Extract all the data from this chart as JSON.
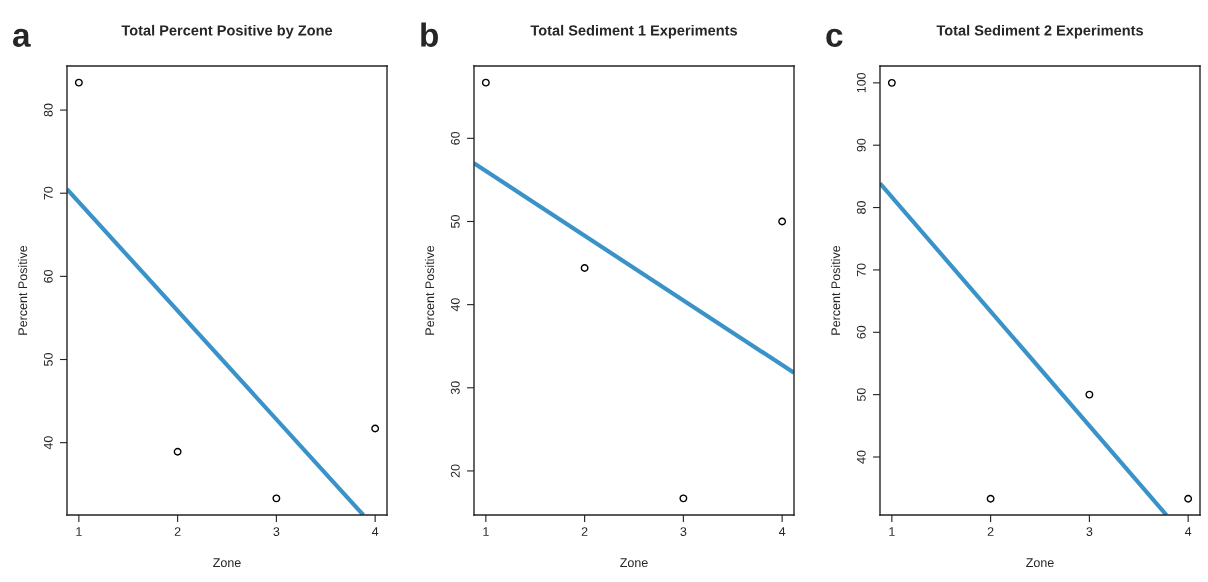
{
  "chart_data": [
    {
      "type": "scatter",
      "title": "Total Percent Positive by Zone",
      "xlabel": "Zone",
      "ylabel": "Percent Positive",
      "annotations": [
        "a"
      ],
      "xlim": [
        0.88,
        4.12
      ],
      "xticks": [
        1,
        2,
        3,
        4
      ],
      "ylim": [
        31.3,
        85.3
      ],
      "yticks": [
        40,
        50,
        60,
        70,
        80
      ],
      "grid": false,
      "series": [
        {
          "color": "#000000",
          "marker": "circle",
          "x": [
            1,
            2,
            3,
            4
          ],
          "values": [
            83.3,
            38.9,
            33.3,
            41.7
          ]
        },
        {
          "type": "line",
          "color": "#3a93c8",
          "x": [
            0.88,
            3.88
          ],
          "values": [
            70.5,
            31.3
          ]
        }
      ]
    },
    {
      "type": "scatter",
      "title": "Total Sediment 1 Experiments",
      "xlabel": "Zone",
      "ylabel": "Percent Positive",
      "annotations": [
        "b"
      ],
      "xlim": [
        0.88,
        4.12
      ],
      "xticks": [
        1,
        2,
        3,
        4
      ],
      "ylim": [
        14.7,
        68.7
      ],
      "yticks": [
        20,
        30,
        40,
        50,
        60
      ],
      "grid": false,
      "series": [
        {
          "color": "#000000",
          "marker": "circle",
          "x": [
            1,
            2,
            3,
            4
          ],
          "values": [
            66.7,
            44.4,
            16.7,
            50
          ]
        },
        {
          "type": "line",
          "color": "#3a93c8",
          "x": [
            0.88,
            4.12
          ],
          "values": [
            57,
            31.8
          ]
        }
      ]
    },
    {
      "type": "scatter",
      "title": "Total Sediment 2 Experiments",
      "xlabel": "Zone",
      "ylabel": "Percent Positive",
      "annotations": [
        "c"
      ],
      "xlim": [
        0.88,
        4.12
      ],
      "xticks": [
        1,
        2,
        3,
        4
      ],
      "ylim": [
        30.7,
        102.7
      ],
      "yticks": [
        40,
        50,
        60,
        70,
        80,
        90,
        100
      ],
      "grid": false,
      "series": [
        {
          "color": "#000000",
          "marker": "circle",
          "x": [
            1,
            2,
            3,
            4
          ],
          "values": [
            100,
            33.3,
            50,
            33.3
          ]
        },
        {
          "type": "line",
          "color": "#3a93c8",
          "x": [
            0.88,
            3.78
          ],
          "values": [
            83.9,
            30.7
          ]
        }
      ]
    }
  ]
}
